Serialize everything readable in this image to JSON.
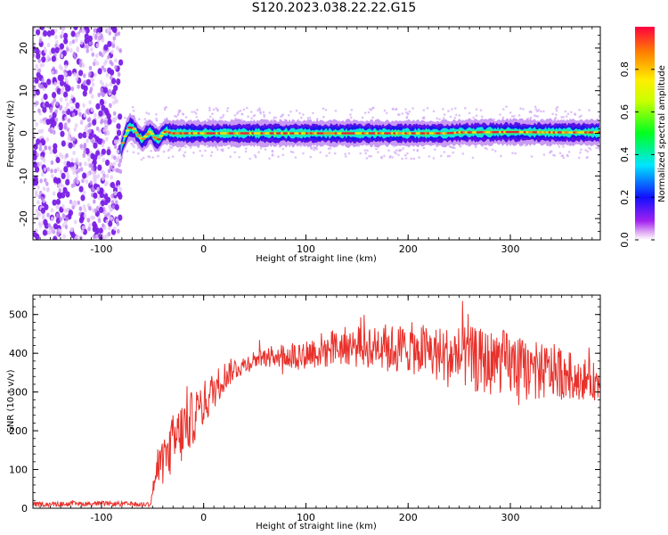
{
  "title": "S120.2023.038.22.22.G15",
  "colors": {
    "line": "#e8312b",
    "dot": "#7a1fe6",
    "ridge_hot": "#e8262a",
    "ridge_warm": "#f2e20a",
    "ridge_mid": "#12e6d8",
    "ridge_low": "#1a18e8"
  },
  "chart_data": [
    {
      "type": "heatmap",
      "title": "",
      "xlabel": "Height of straight line (km)",
      "ylabel": "Frequency (Hz)",
      "xlim": [
        -167,
        388
      ],
      "ylim": [
        -25,
        25
      ],
      "x_ticks": [
        -100,
        0,
        100,
        200,
        300
      ],
      "y_ticks": [
        -20,
        -10,
        0,
        10,
        20
      ],
      "colorbar": {
        "label": "Normalized spectral amplitude",
        "range": [
          0,
          1
        ],
        "ticks": [
          0.0,
          0.2,
          0.4,
          0.6,
          0.8
        ],
        "tick_labels": [
          "0.0",
          "0.2",
          "0.4",
          "0.6",
          "0.8"
        ],
        "colormap": "rainbow (magenta-blue-cyan-green-yellow-red)"
      },
      "noise_region_x": [
        -167,
        -81
      ],
      "ridge": {
        "x": [
          -81,
          -78,
          -75,
          -72,
          -68,
          -64,
          -60,
          -56,
          -52,
          -48,
          -44,
          -40,
          -36,
          -32,
          -25,
          0,
          50,
          100,
          150,
          200,
          237,
          250,
          300,
          350,
          388
        ],
        "y": [
          -3.8,
          -1.5,
          0.5,
          1.5,
          1.0,
          -0.5,
          -1.5,
          -0.5,
          0.5,
          -1.0,
          -1.5,
          0.0,
          0.5,
          0.0,
          0.0,
          0.0,
          0.0,
          0.0,
          0.0,
          0.0,
          0.0,
          0.2,
          0.3,
          0.2,
          0.2
        ]
      }
    },
    {
      "type": "line",
      "title": "",
      "xlabel": "Height of straight line (km)",
      "ylabel": "SNR (10 * v/v)",
      "xlim": [
        -167,
        388
      ],
      "ylim": [
        0,
        550
      ],
      "x_ticks": [
        -100,
        0,
        100,
        200,
        300
      ],
      "y_ticks": [
        0,
        100,
        200,
        300,
        400,
        500
      ],
      "series": [
        {
          "x": [
            -167,
            -100,
            -52,
            -48,
            -40,
            -30,
            -20,
            -10,
            0,
            10,
            20,
            30,
            40,
            50,
            60,
            70,
            80,
            90,
            100,
            110,
            120,
            130,
            140,
            150,
            160,
            170,
            180,
            190,
            200,
            210,
            220,
            230,
            240,
            250,
            260,
            270,
            280,
            290,
            300,
            310,
            320,
            330,
            340,
            350,
            360,
            370,
            380,
            388
          ],
          "y": [
            10,
            12,
            10,
            75,
            120,
            165,
            200,
            235,
            270,
            305,
            340,
            360,
            370,
            385,
            390,
            395,
            395,
            395,
            400,
            405,
            410,
            415,
            420,
            415,
            420,
            425,
            415,
            410,
            415,
            410,
            405,
            395,
            390,
            395,
            385,
            380,
            375,
            380,
            370,
            360,
            355,
            350,
            355,
            350,
            340,
            335,
            330,
            320
          ],
          "noise_amplitude": [
            6,
            6,
            6,
            35,
            60,
            80,
            85,
            70,
            60,
            50,
            40,
            30,
            25,
            25,
            25,
            30,
            35,
            40,
            40,
            45,
            50,
            50,
            50,
            55,
            60,
            60,
            60,
            65,
            65,
            70,
            70,
            75,
            80,
            80,
            85,
            85,
            85,
            85,
            85,
            80,
            80,
            75,
            70,
            70,
            60,
            55,
            50,
            45
          ]
        }
      ]
    }
  ]
}
